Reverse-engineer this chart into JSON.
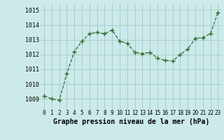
{
  "x": [
    0,
    1,
    2,
    3,
    4,
    5,
    6,
    7,
    8,
    9,
    10,
    11,
    12,
    13,
    14,
    15,
    16,
    17,
    18,
    19,
    20,
    21,
    22,
    23
  ],
  "y": [
    1009.2,
    1009.0,
    1008.9,
    1010.7,
    1012.2,
    1012.9,
    1013.4,
    1013.5,
    1013.4,
    1013.65,
    1012.9,
    1012.75,
    1012.15,
    1012.05,
    1012.15,
    1011.75,
    1011.6,
    1011.55,
    1012.0,
    1012.35,
    1013.1,
    1013.15,
    1013.4,
    1014.85
  ],
  "line_color": "#2d6a2d",
  "marker": "+",
  "marker_size": 4,
  "background_color": "#cceaea",
  "grid_color": "#aacccc",
  "xlabel": "Graphe pression niveau de la mer (hPa)",
  "xlabel_fontsize": 7,
  "ylabel_ticks": [
    1009,
    1010,
    1011,
    1012,
    1013,
    1014,
    1015
  ],
  "xlim": [
    -0.5,
    23.5
  ],
  "ylim": [
    1008.3,
    1015.4
  ],
  "xtick_labels": [
    "0",
    "1",
    "2",
    "3",
    "4",
    "5",
    "6",
    "7",
    "8",
    "9",
    "10",
    "11",
    "12",
    "13",
    "14",
    "15",
    "16",
    "17",
    "18",
    "19",
    "20",
    "21",
    "22",
    "23"
  ],
  "tick_fontsize": 5.5,
  "ytick_fontsize": 6
}
